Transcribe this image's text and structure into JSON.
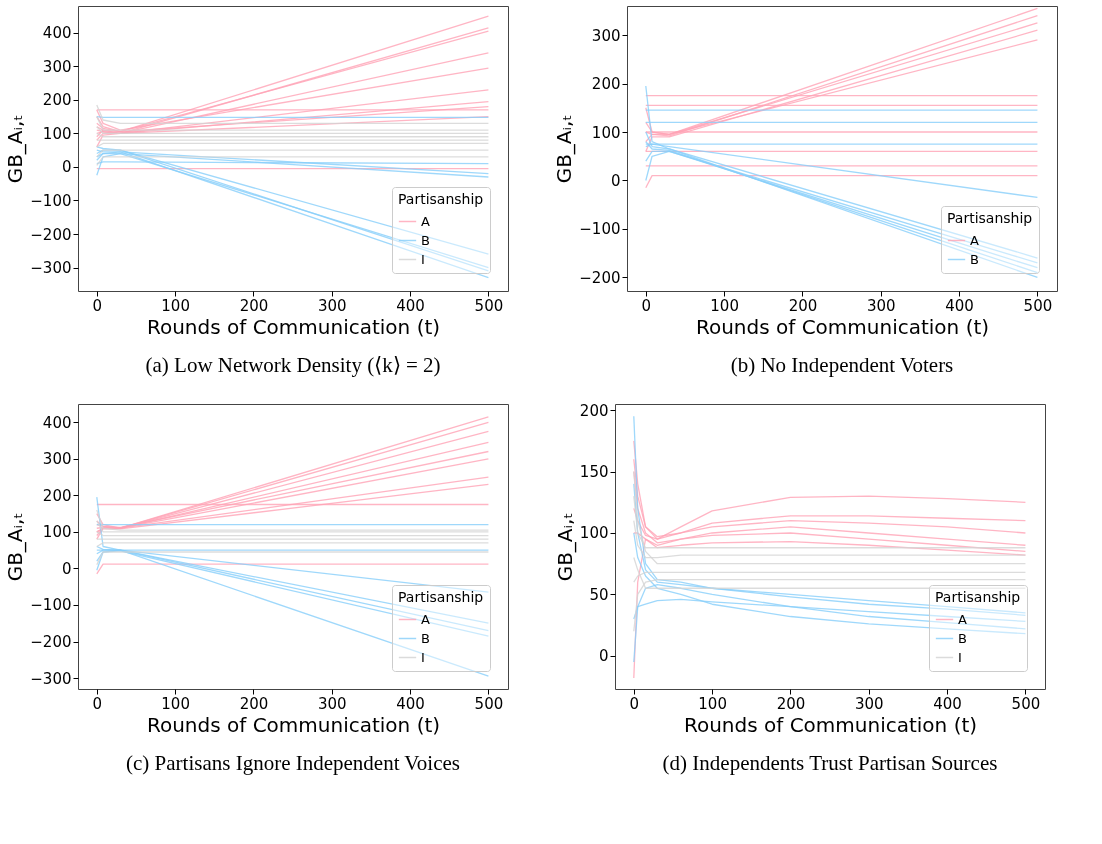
{
  "chart_data": [
    {
      "type": "line",
      "title": "(a) Low Network Density (⟨k⟩ = 2)",
      "xlabel": "Rounds of Communication (t)",
      "ylabel": "GB_Aᵢ,ₜ",
      "legend_title": "Partisanship",
      "legend": "bottom right",
      "grid": false,
      "xlim": [
        -24,
        525
      ],
      "ylim": [
        -370,
        480
      ],
      "xticks": [
        0,
        100,
        200,
        300,
        400,
        500
      ],
      "yticks": [
        -300,
        -200,
        -100,
        0,
        100,
        200,
        300,
        400
      ],
      "x": [
        0,
        8,
        30,
        500
      ],
      "series": [
        {
          "name": "A",
          "color": "#ffa3b5",
          "values": [
            150,
            120,
            105,
            450
          ]
        },
        {
          "color": "#ffa3b5",
          "values": [
            90,
            110,
            100,
            415
          ]
        },
        {
          "color": "#ffa3b5",
          "values": [
            130,
            115,
            105,
            405
          ]
        },
        {
          "color": "#ffa3b5",
          "values": [
            60,
            95,
            100,
            340
          ]
        },
        {
          "color": "#ffa3b5",
          "values": [
            170,
            130,
            110,
            295
          ]
        },
        {
          "color": "#ffa3b5",
          "values": [
            100,
            105,
            100,
            230
          ]
        },
        {
          "color": "#ffa3b5",
          "values": [
            80,
            100,
            100,
            195
          ]
        },
        {
          "color": "#ffa3b5",
          "values": [
            120,
            110,
            105,
            180
          ]
        },
        {
          "color": "#ffa3b5",
          "values": [
            110,
            105,
            100,
            150
          ]
        },
        {
          "color": "#ffa3b5",
          "values": [
            170,
            170,
            170,
            170
          ]
        },
        {
          "color": "#ffa3b5",
          "values": [
            -5,
            -5,
            -5,
            -5
          ]
        },
        {
          "name": "B",
          "color": "#87cefa",
          "values": [
            20,
            40,
            45,
            -330
          ]
        },
        {
          "color": "#87cefa",
          "values": [
            40,
            50,
            50,
            -310
          ]
        },
        {
          "color": "#87cefa",
          "values": [
            -25,
            30,
            40,
            -300
          ]
        },
        {
          "color": "#87cefa",
          "values": [
            60,
            55,
            50,
            -260
          ]
        },
        {
          "color": "#87cefa",
          "values": [
            30,
            40,
            40,
            -30
          ]
        },
        {
          "color": "#87cefa",
          "values": [
            50,
            45,
            45,
            -20
          ]
        },
        {
          "color": "#87cefa",
          "values": [
            10,
            15,
            15,
            10
          ]
        },
        {
          "color": "#87cefa",
          "values": [
            150,
            148,
            148,
            148
          ]
        },
        {
          "name": "I",
          "color": "#d3d3d3",
          "values": [
            185,
            140,
            130,
            130
          ]
        },
        {
          "color": "#d3d3d3",
          "values": [
            100,
            90,
            90,
            90
          ]
        },
        {
          "color": "#d3d3d3",
          "values": [
            150,
            110,
            110,
            110
          ]
        },
        {
          "color": "#d3d3d3",
          "values": [
            60,
            70,
            70,
            70
          ]
        },
        {
          "color": "#d3d3d3",
          "values": [
            30,
            50,
            50,
            50
          ]
        },
        {
          "color": "#d3d3d3",
          "values": [
            5,
            30,
            30,
            30
          ]
        },
        {
          "color": "#d3d3d3",
          "values": [
            80,
            80,
            80,
            80
          ]
        },
        {
          "color": "#d3d3d3",
          "values": [
            120,
            100,
            100,
            100
          ]
        }
      ]
    },
    {
      "type": "line",
      "title": "(b) No Independent Voters",
      "xlabel": "Rounds of Communication (t)",
      "ylabel": "GB_Aᵢ,ₜ",
      "legend_title": "Partisanship",
      "legend": "bottom right",
      "grid": false,
      "xlim": [
        -24,
        525
      ],
      "ylim": [
        -228,
        360
      ],
      "xticks": [
        0,
        100,
        200,
        300,
        400,
        500
      ],
      "yticks": [
        -200,
        -100,
        0,
        100,
        200,
        300
      ],
      "x": [
        0,
        8,
        30,
        500
      ],
      "series": [
        {
          "name": "A",
          "color": "#ffa3b5",
          "values": [
            150,
            100,
            95,
            355
          ]
        },
        {
          "color": "#ffa3b5",
          "values": [
            80,
            95,
            92,
            340
          ]
        },
        {
          "color": "#ffa3b5",
          "values": [
            120,
            100,
            95,
            325
          ]
        },
        {
          "color": "#ffa3b5",
          "values": [
            60,
            90,
            90,
            310
          ]
        },
        {
          "color": "#ffa3b5",
          "values": [
            100,
            95,
            95,
            290
          ]
        },
        {
          "color": "#ffa3b5",
          "values": [
            175,
            175,
            175,
            175
          ]
        },
        {
          "color": "#ffa3b5",
          "values": [
            155,
            155,
            155,
            155
          ]
        },
        {
          "color": "#ffa3b5",
          "values": [
            100,
            100,
            100,
            100
          ]
        },
        {
          "color": "#ffa3b5",
          "values": [
            60,
            60,
            60,
            60
          ]
        },
        {
          "color": "#ffa3b5",
          "values": [
            30,
            30,
            30,
            30
          ]
        },
        {
          "color": "#ffa3b5",
          "values": [
            -15,
            10,
            10,
            10
          ]
        },
        {
          "name": "B",
          "color": "#87cefa",
          "values": [
            195,
            80,
            65,
            -160
          ]
        },
        {
          "color": "#87cefa",
          "values": [
            40,
            60,
            60,
            -170
          ]
        },
        {
          "color": "#87cefa",
          "values": [
            0,
            50,
            60,
            -180
          ]
        },
        {
          "color": "#87cefa",
          "values": [
            80,
            65,
            62,
            -190
          ]
        },
        {
          "color": "#87cefa",
          "values": [
            100,
            70,
            65,
            -200
          ]
        },
        {
          "color": "#87cefa",
          "values": [
            70,
            75,
            70,
            -35
          ]
        },
        {
          "color": "#87cefa",
          "values": [
            145,
            145,
            145,
            145
          ]
        },
        {
          "color": "#87cefa",
          "values": [
            120,
            120,
            120,
            120
          ]
        },
        {
          "color": "#87cefa",
          "values": [
            75,
            75,
            75,
            75
          ]
        }
      ]
    },
    {
      "type": "line",
      "title": "(c) Partisans Ignore Independent Voices",
      "xlabel": "Rounds of Communication (t)",
      "ylabel": "GB_Aᵢ,ₜ",
      "legend_title": "Partisanship",
      "legend": "bottom right",
      "grid": false,
      "xlim": [
        -24,
        525
      ],
      "ylim": [
        -330,
        450
      ],
      "xticks": [
        0,
        100,
        200,
        300,
        400,
        500
      ],
      "yticks": [
        -300,
        -200,
        -100,
        0,
        100,
        200,
        300,
        400
      ],
      "x": [
        0,
        8,
        30,
        500
      ],
      "series": [
        {
          "name": "A",
          "color": "#ffa3b5",
          "values": [
            150,
            120,
            110,
            415
          ]
        },
        {
          "color": "#ffa3b5",
          "values": [
            90,
            110,
            110,
            400
          ]
        },
        {
          "color": "#ffa3b5",
          "values": [
            120,
            115,
            110,
            375
          ]
        },
        {
          "color": "#ffa3b5",
          "values": [
            100,
            110,
            110,
            345
          ]
        },
        {
          "color": "#ffa3b5",
          "values": [
            130,
            115,
            112,
            320
          ]
        },
        {
          "color": "#ffa3b5",
          "values": [
            80,
            110,
            110,
            300
          ]
        },
        {
          "color": "#ffa3b5",
          "values": [
            110,
            112,
            110,
            250
          ]
        },
        {
          "color": "#ffa3b5",
          "values": [
            100,
            108,
            108,
            230
          ]
        },
        {
          "color": "#ffa3b5",
          "values": [
            175,
            175,
            175,
            175
          ]
        },
        {
          "color": "#ffa3b5",
          "values": [
            -15,
            12,
            12,
            12
          ]
        },
        {
          "name": "B",
          "color": "#87cefa",
          "values": [
            195,
            60,
            50,
            -65
          ]
        },
        {
          "color": "#87cefa",
          "values": [
            20,
            45,
            50,
            -150
          ]
        },
        {
          "color": "#87cefa",
          "values": [
            40,
            50,
            50,
            -170
          ]
        },
        {
          "color": "#87cefa",
          "values": [
            -5,
            45,
            48,
            -185
          ]
        },
        {
          "color": "#87cefa",
          "values": [
            60,
            52,
            50,
            -295
          ]
        },
        {
          "color": "#87cefa",
          "values": [
            50,
            50,
            50,
            50
          ]
        },
        {
          "color": "#87cefa",
          "values": [
            120,
            120,
            120,
            120
          ]
        },
        {
          "name": "I",
          "color": "#d3d3d3",
          "values": [
            160,
            110,
            105,
            105
          ]
        },
        {
          "color": "#d3d3d3",
          "values": [
            100,
            90,
            90,
            90
          ]
        },
        {
          "color": "#d3d3d3",
          "values": [
            60,
            70,
            70,
            70
          ]
        },
        {
          "color": "#d3d3d3",
          "values": [
            10,
            45,
            45,
            45
          ]
        },
        {
          "color": "#d3d3d3",
          "values": [
            80,
            80,
            80,
            80
          ]
        },
        {
          "color": "#d3d3d3",
          "values": [
            130,
            100,
            100,
            100
          ]
        }
      ]
    },
    {
      "type": "line",
      "title": "(d) Independents Trust Partisan Sources",
      "xlabel": "Rounds of Communication (t)",
      "ylabel": "GB_Aᵢ,ₜ",
      "legend_title": "Partisanship",
      "legend": "bottom right",
      "grid": false,
      "xlim": [
        -24,
        525
      ],
      "ylim": [
        -27,
        205
      ],
      "xticks": [
        0,
        100,
        200,
        300,
        400,
        500
      ],
      "yticks": [
        0,
        50,
        100,
        150,
        200
      ],
      "x": [
        0,
        5,
        15,
        30,
        60,
        100,
        200,
        300,
        400,
        500
      ],
      "series": [
        {
          "name": "A",
          "color": "#ffa3b5",
          "values": [
            175,
            140,
            105,
            95,
            100,
            105,
            110,
            108,
            105,
            100
          ]
        },
        {
          "color": "#ffa3b5",
          "values": [
            -18,
            60,
            95,
            90,
            95,
            100,
            105,
            100,
            95,
            90
          ]
        },
        {
          "color": "#ffa3b5",
          "values": [
            150,
            120,
            100,
            92,
            95,
            98,
            100,
            95,
            90,
            85
          ]
        },
        {
          "color": "#ffa3b5",
          "values": [
            120,
            110,
            98,
            95,
            105,
            118,
            129,
            130,
            128,
            125
          ]
        },
        {
          "color": "#ffa3b5",
          "values": [
            100,
            100,
            95,
            88,
            90,
            92,
            93,
            90,
            86,
            82
          ]
        },
        {
          "color": "#ffa3b5",
          "values": [
            160,
            130,
            105,
            97,
            100,
            108,
            114,
            114,
            112,
            110
          ]
        },
        {
          "name": "B",
          "color": "#87cefa",
          "values": [
            195,
            120,
            75,
            62,
            60,
            55,
            50,
            45,
            40,
            35
          ]
        },
        {
          "color": "#87cefa",
          "values": [
            -5,
            40,
            55,
            58,
            55,
            50,
            40,
            32,
            27,
            22
          ]
        },
        {
          "color": "#87cefa",
          "values": [
            140,
            100,
            70,
            60,
            58,
            55,
            48,
            42,
            38,
            33
          ]
        },
        {
          "color": "#87cefa",
          "values": [
            30,
            40,
            42,
            45,
            46,
            44,
            40,
            36,
            32,
            28
          ]
        },
        {
          "color": "#87cefa",
          "values": [
            100,
            80,
            65,
            55,
            50,
            42,
            32,
            26,
            22,
            18
          ]
        },
        {
          "name": "I",
          "color": "#d3d3d3",
          "values": [
            150,
            110,
            85,
            75,
            75,
            75,
            75,
            75,
            75,
            75
          ]
        },
        {
          "color": "#d3d3d3",
          "values": [
            20,
            50,
            60,
            62,
            62,
            62,
            62,
            62,
            62,
            62
          ]
        },
        {
          "color": "#d3d3d3",
          "values": [
            110,
            90,
            80,
            80,
            82,
            82,
            82,
            82,
            82,
            82
          ]
        },
        {
          "color": "#d3d3d3",
          "values": [
            60,
            65,
            68,
            68,
            68,
            68,
            68,
            68,
            68,
            68
          ]
        },
        {
          "color": "#d3d3d3",
          "values": [
            130,
            100,
            88,
            88,
            88,
            88,
            88,
            88,
            88,
            88
          ]
        },
        {
          "color": "#d3d3d3",
          "values": [
            80,
            70,
            55,
            55,
            55,
            55,
            55,
            55,
            55,
            55
          ]
        }
      ]
    }
  ]
}
